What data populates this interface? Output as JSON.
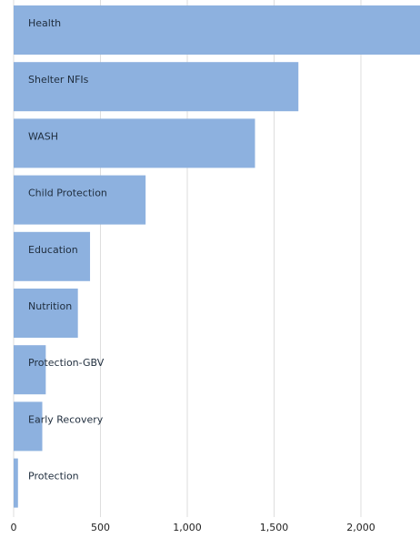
{
  "chart_data": {
    "type": "bar",
    "orientation": "horizontal",
    "categories": [
      "Health",
      "Shelter NFIs",
      "WASH",
      "Child Protection",
      "Education",
      "Nutrition",
      "Protection-GBV",
      "Early Recovery",
      "Protection"
    ],
    "values": [
      2360,
      1640,
      1390,
      760,
      440,
      370,
      185,
      165,
      25
    ],
    "xlim": [
      0,
      2350
    ],
    "xticks": [
      0,
      500,
      1000,
      1500,
      2000
    ],
    "xtick_labels": [
      "0",
      "500",
      "1,000",
      "1,500",
      "2,000"
    ],
    "grid": true,
    "colors": {
      "bar": "#8db1df",
      "grid": "#dedede",
      "label": "#1f2d3d"
    }
  }
}
